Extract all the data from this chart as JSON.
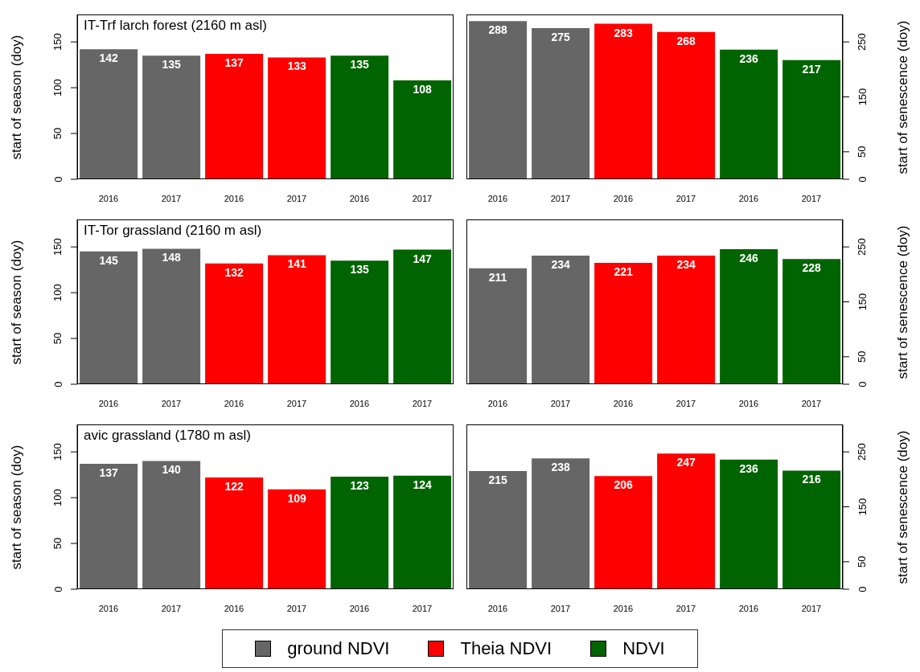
{
  "chart_data": [
    {
      "type": "bar",
      "stacked": true,
      "title": "IT-Trf larch forest (2160 m asl)",
      "ylabel": "start of season (doy)",
      "categories": [
        "2016",
        "2017",
        "2016",
        "2017",
        "2016",
        "2017"
      ],
      "ylim": [
        0,
        180
      ],
      "yticks": [
        0,
        50,
        100,
        150
      ],
      "data_labels": true,
      "series": [
        {
          "color": "#666666",
          "values": [
            142,
            135,
            null,
            null,
            null,
            null
          ]
        },
        {
          "color": "#ff0000",
          "values": [
            null,
            null,
            137,
            133,
            null,
            null
          ]
        },
        {
          "color": "#006400",
          "values": [
            null,
            null,
            null,
            null,
            135,
            108
          ]
        }
      ]
    },
    {
      "type": "bar",
      "stacked": true,
      "y2label": "start of senescence (doy)",
      "categories": [
        "2016",
        "2017",
        "2016",
        "2017",
        "2016",
        "2017"
      ],
      "y2lim": [
        0,
        300
      ],
      "y2ticks": [
        0,
        50,
        150,
        250
      ],
      "data_labels": true,
      "series": [
        {
          "color": "#666666",
          "axis": "y2",
          "values": [
            288,
            275,
            null,
            null,
            null,
            null
          ]
        },
        {
          "color": "#ff0000",
          "axis": "y2",
          "values": [
            null,
            null,
            283,
            268,
            null,
            null
          ]
        },
        {
          "color": "#006400",
          "axis": "y2",
          "values": [
            null,
            null,
            null,
            null,
            236,
            217
          ]
        }
      ]
    },
    {
      "type": "bar",
      "stacked": true,
      "title": "IT-Tor grassland (2160 m asl)",
      "ylabel": "start of season (doy)",
      "categories": [
        "2016",
        "2017",
        "2016",
        "2017",
        "2016",
        "2017"
      ],
      "ylim": [
        0,
        180
      ],
      "yticks": [
        0,
        50,
        100,
        150
      ],
      "data_labels": true,
      "series": [
        {
          "color": "#666666",
          "values": [
            145,
            148,
            null,
            null,
            null,
            null
          ]
        },
        {
          "color": "#ff0000",
          "values": [
            null,
            null,
            132,
            141,
            null,
            null
          ]
        },
        {
          "color": "#006400",
          "values": [
            null,
            null,
            null,
            null,
            135,
            147
          ]
        }
      ]
    },
    {
      "type": "bar",
      "stacked": true,
      "y2label": "start of senescence (doy)",
      "categories": [
        "2016",
        "2017",
        "2016",
        "2017",
        "2016",
        "2017"
      ],
      "y2lim": [
        0,
        300
      ],
      "y2ticks": [
        0,
        50,
        150,
        250
      ],
      "data_labels": true,
      "series": [
        {
          "color": "#666666",
          "axis": "y2",
          "values": [
            211,
            234,
            null,
            null,
            null,
            null
          ]
        },
        {
          "color": "#ff0000",
          "axis": "y2",
          "values": [
            null,
            null,
            221,
            234,
            null,
            null
          ]
        },
        {
          "color": "#006400",
          "axis": "y2",
          "values": [
            null,
            null,
            null,
            null,
            246,
            228
          ]
        }
      ]
    },
    {
      "type": "bar",
      "stacked": true,
      "title": "avic grassland (1780 m asl)",
      "ylabel": "start of season (doy)",
      "categories": [
        "2016",
        "2017",
        "2016",
        "2017",
        "2016",
        "2017"
      ],
      "ylim": [
        0,
        180
      ],
      "yticks": [
        0,
        50,
        100,
        150
      ],
      "data_labels": true,
      "series": [
        {
          "color": "#666666",
          "values": [
            137,
            140,
            null,
            null,
            null,
            null
          ]
        },
        {
          "color": "#ff0000",
          "values": [
            null,
            null,
            122,
            109,
            null,
            null
          ]
        },
        {
          "color": "#006400",
          "values": [
            null,
            null,
            null,
            null,
            123,
            124
          ]
        }
      ]
    },
    {
      "type": "bar",
      "stacked": true,
      "y2label": "start of senescence (doy)",
      "categories": [
        "2016",
        "2017",
        "2016",
        "2017",
        "2016",
        "2017"
      ],
      "y2lim": [
        0,
        300
      ],
      "y2ticks": [
        0,
        50,
        150,
        250
      ],
      "data_labels": true,
      "legend": "bottom",
      "series": [
        {
          "name": "ground NDVI",
          "color": "#666666",
          "axis": "y2",
          "values": [
            215,
            238,
            null,
            null,
            null,
            null
          ]
        },
        {
          "name": "Theia NDVI",
          "color": "#ff0000",
          "axis": "y2",
          "values": [
            null,
            null,
            206,
            247,
            null,
            null
          ]
        },
        {
          "name": "NDVI",
          "color": "#006400",
          "axis": "y2",
          "values": [
            null,
            null,
            null,
            null,
            236,
            216
          ]
        }
      ]
    }
  ]
}
